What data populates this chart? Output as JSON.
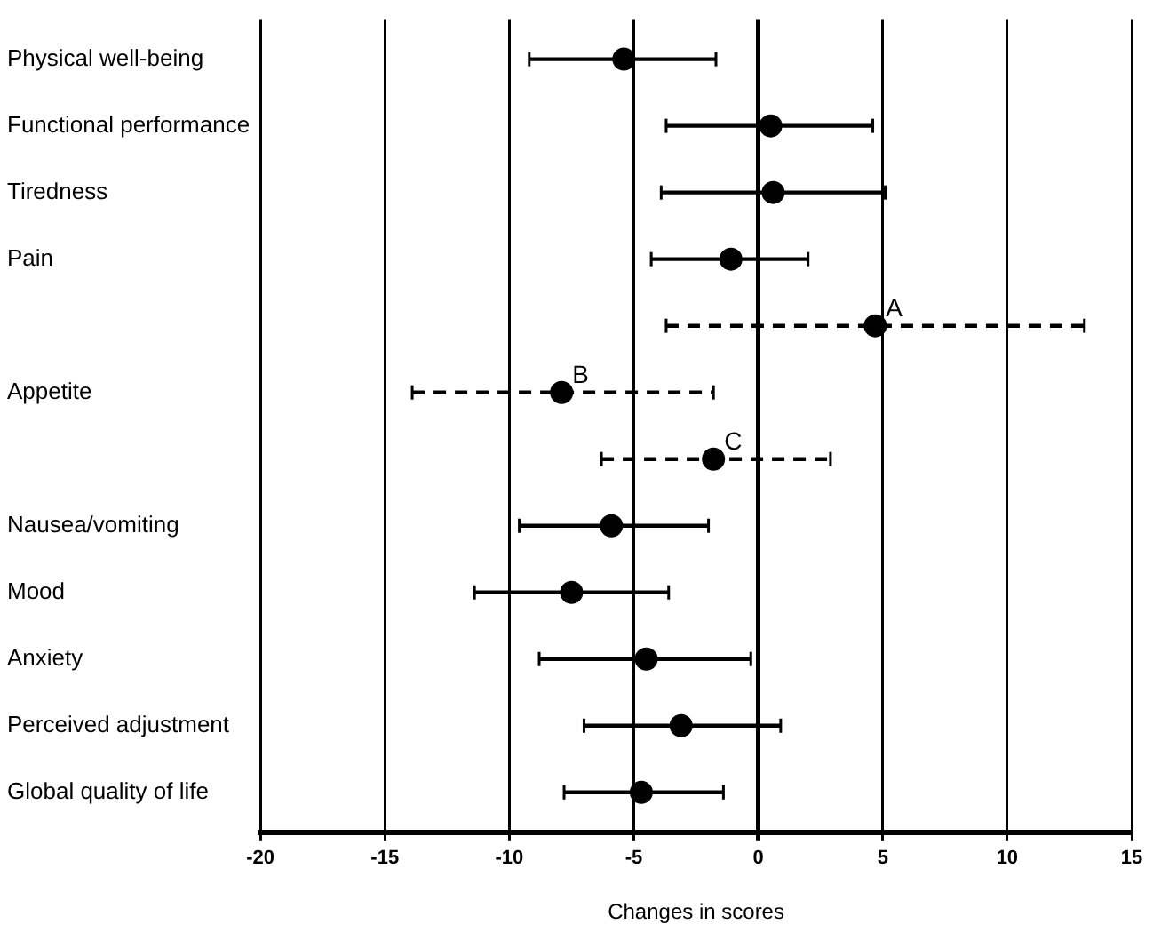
{
  "chart_data": {
    "type": "scatter",
    "orientation": "horizontal",
    "xlabel": "Changes in scores",
    "categories": [
      "Physical well-being",
      "Functional performance",
      "Tiredness",
      "Pain",
      null,
      "Appetite",
      null,
      "Nausea/vomiting",
      "Mood",
      "Anxiety",
      "Perceived adjustment",
      "Global quality of life"
    ],
    "series": [
      {
        "color": "#000000",
        "line_style": "solid",
        "values": [
          -5.4,
          0.5,
          0.6,
          -1.1,
          null,
          null,
          null,
          -5.9,
          -7.5,
          -4.5,
          -3.1,
          -4.7
        ],
        "errors": [
          [
            -9.2,
            -1.7
          ],
          [
            -3.7,
            4.6
          ],
          [
            -3.9,
            5.1
          ],
          [
            -4.3,
            2.0
          ],
          null,
          null,
          null,
          [
            -9.6,
            -2.0
          ],
          [
            -11.4,
            -3.6
          ],
          [
            -8.8,
            -0.3
          ],
          [
            -7.0,
            0.9
          ],
          [
            -7.8,
            -1.4
          ]
        ]
      },
      {
        "color": "#000000",
        "line_style": "dashed",
        "values": [
          null,
          null,
          null,
          null,
          4.7,
          -7.9,
          -1.8,
          null,
          null,
          null,
          null,
          null
        ],
        "errors": [
          null,
          null,
          null,
          null,
          [
            -3.7,
            13.1
          ],
          [
            -13.9,
            -1.8
          ],
          [
            -6.3,
            2.9
          ],
          null,
          null,
          null,
          null,
          null
        ]
      }
    ],
    "xlim": [
      -20,
      15
    ],
    "xticks": [
      -20,
      -15,
      -10,
      -5,
      0,
      5,
      10,
      15
    ],
    "grid": "x",
    "marker": "circle",
    "legend": false,
    "annotations": [
      {
        "text": "A",
        "x": 4.7
      },
      {
        "text": "B",
        "x": -7.9,
        "y": "Appetite"
      },
      {
        "text": "C",
        "x": -1.8
      }
    ]
  }
}
